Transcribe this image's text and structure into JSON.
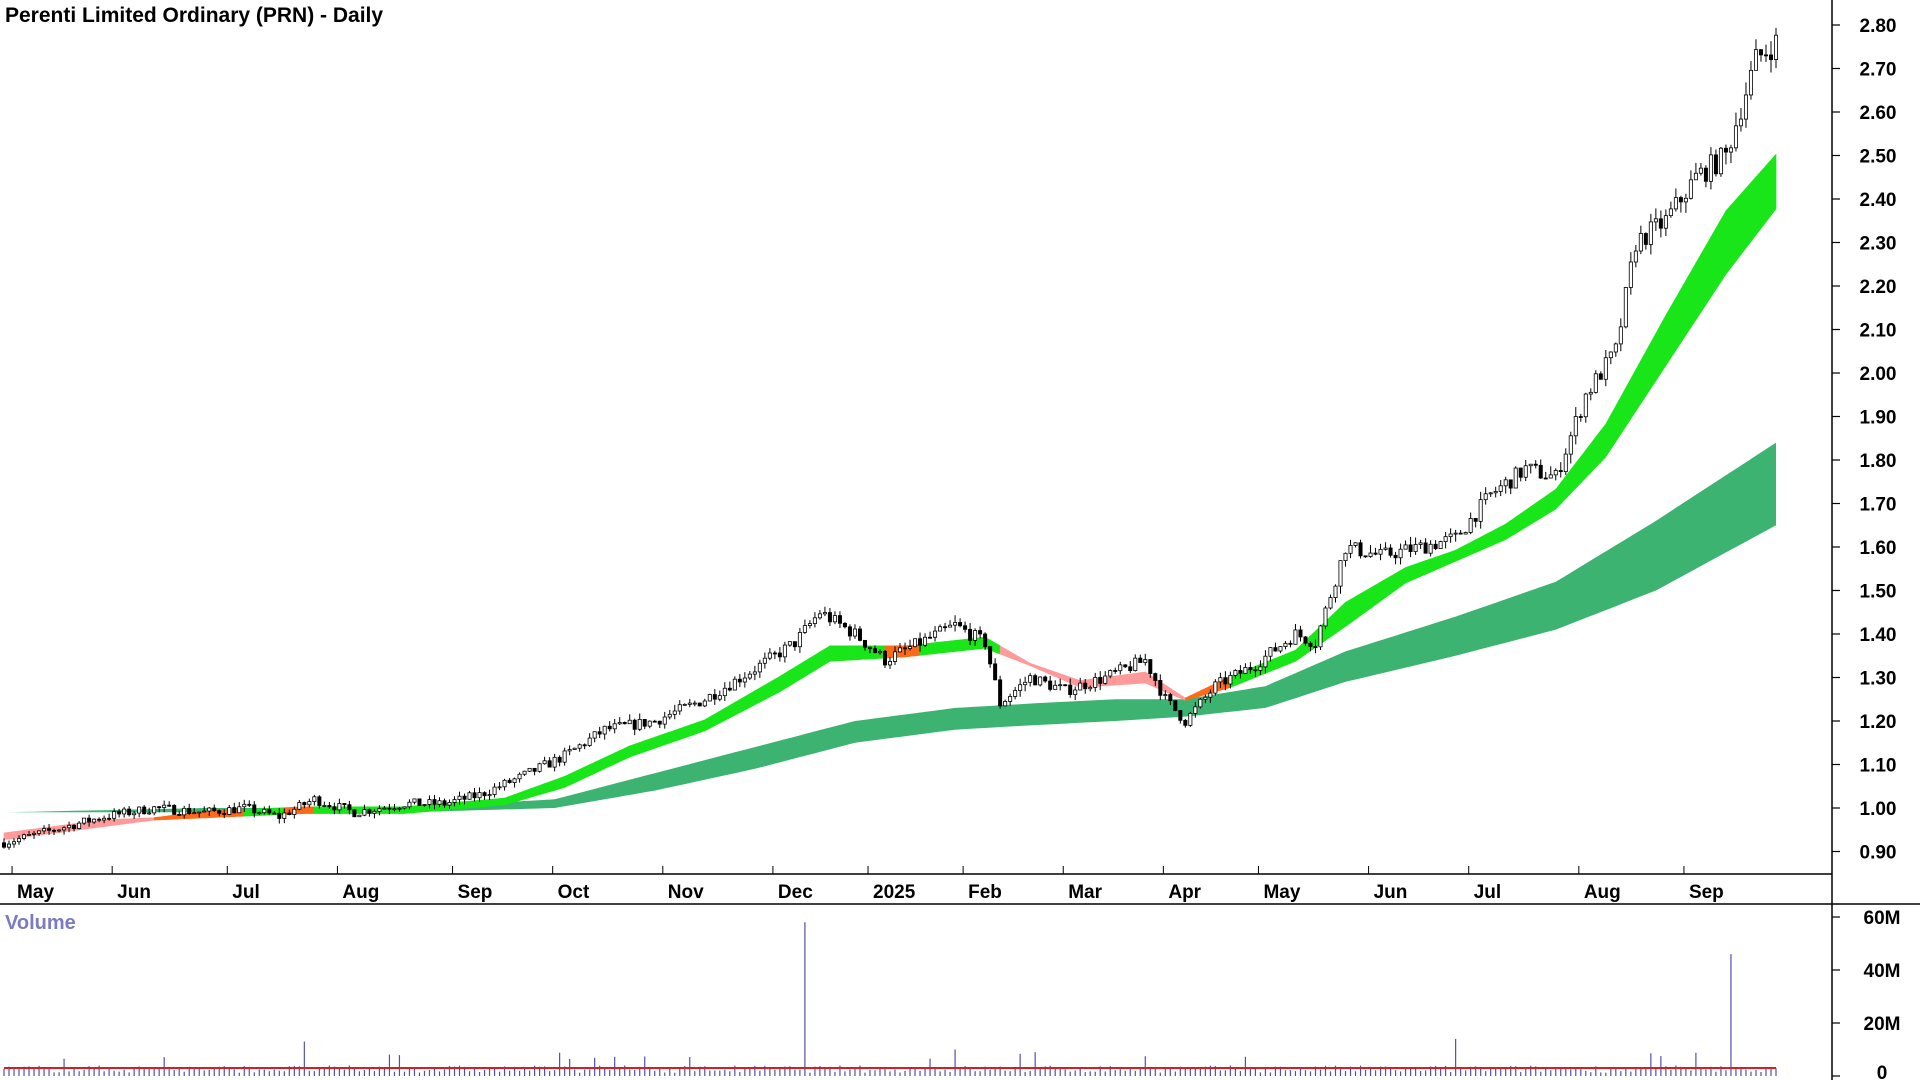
{
  "chart_data": {
    "type": "candlestick",
    "title": "Perenti Limited Ordinary (PRN) - Daily",
    "price_axis": {
      "ylim": [
        0.85,
        2.85
      ],
      "ticks": [
        "0.90",
        "1.00",
        "1.10",
        "1.20",
        "1.30",
        "1.40",
        "1.50",
        "1.60",
        "1.70",
        "1.80",
        "1.90",
        "2.00",
        "2.10",
        "2.20",
        "2.30",
        "2.40",
        "2.50",
        "2.60",
        "2.70",
        "2.80"
      ]
    },
    "x_axis": {
      "ticks": [
        "May",
        "Jun",
        "Jul",
        "Aug",
        "Sep",
        "Oct",
        "Nov",
        "Dec",
        "2025",
        "Feb",
        "Mar",
        "Apr",
        "May",
        "Jun",
        "Jul",
        "Aug",
        "Sep"
      ]
    },
    "price_path": [
      [
        0,
        0.92
      ],
      [
        10,
        0.95
      ],
      [
        20,
        0.98
      ],
      [
        30,
        1.0
      ],
      [
        40,
        0.99
      ],
      [
        48,
        1.0
      ],
      [
        55,
        0.98
      ],
      [
        62,
        1.02
      ],
      [
        70,
        0.99
      ],
      [
        80,
        1.01
      ],
      [
        88,
        1.01
      ],
      [
        95,
        1.03
      ],
      [
        103,
        1.07
      ],
      [
        112,
        1.12
      ],
      [
        120,
        1.18
      ],
      [
        130,
        1.2
      ],
      [
        140,
        1.25
      ],
      [
        150,
        1.32
      ],
      [
        158,
        1.38
      ],
      [
        163,
        1.45
      ],
      [
        170,
        1.4
      ],
      [
        176,
        1.34
      ],
      [
        183,
        1.38
      ],
      [
        190,
        1.42
      ],
      [
        196,
        1.38
      ],
      [
        199,
        1.24
      ],
      [
        205,
        1.3
      ],
      [
        212,
        1.27
      ],
      [
        220,
        1.3
      ],
      [
        228,
        1.34
      ],
      [
        232,
        1.25
      ],
      [
        236,
        1.2
      ],
      [
        242,
        1.28
      ],
      [
        250,
        1.33
      ],
      [
        258,
        1.4
      ],
      [
        262,
        1.38
      ],
      [
        268,
        1.6
      ],
      [
        275,
        1.58
      ],
      [
        283,
        1.6
      ],
      [
        290,
        1.62
      ],
      [
        297,
        1.72
      ],
      [
        304,
        1.78
      ],
      [
        310,
        1.76
      ],
      [
        316,
        1.95
      ],
      [
        322,
        2.05
      ],
      [
        326,
        2.3
      ],
      [
        332,
        2.35
      ],
      [
        338,
        2.45
      ],
      [
        344,
        2.5
      ],
      [
        350,
        2.72
      ],
      [
        354,
        2.76
      ]
    ],
    "ema_short_band": {
      "name_fast": "short-term EMA group (fast edge)",
      "fast": [
        [
          0,
          0.93
        ],
        [
          20,
          0.96
        ],
        [
          40,
          0.99
        ],
        [
          60,
          1.0
        ],
        [
          80,
          1.0
        ],
        [
          100,
          1.02
        ],
        [
          112,
          1.07
        ],
        [
          125,
          1.14
        ],
        [
          140,
          1.2
        ],
        [
          155,
          1.3
        ],
        [
          165,
          1.37
        ],
        [
          180,
          1.37
        ],
        [
          196,
          1.39
        ],
        [
          205,
          1.33
        ],
        [
          215,
          1.29
        ],
        [
          228,
          1.31
        ],
        [
          236,
          1.25
        ],
        [
          245,
          1.3
        ],
        [
          258,
          1.36
        ],
        [
          268,
          1.47
        ],
        [
          280,
          1.55
        ],
        [
          290,
          1.59
        ],
        [
          300,
          1.65
        ],
        [
          310,
          1.73
        ],
        [
          320,
          1.88
        ],
        [
          332,
          2.13
        ],
        [
          344,
          2.37
        ],
        [
          354,
          2.5
        ]
      ],
      "slow": [
        [
          0,
          0.94
        ],
        [
          20,
          0.97
        ],
        [
          40,
          0.98
        ],
        [
          60,
          0.99
        ],
        [
          80,
          0.99
        ],
        [
          100,
          1.01
        ],
        [
          112,
          1.05
        ],
        [
          125,
          1.12
        ],
        [
          140,
          1.18
        ],
        [
          155,
          1.27
        ],
        [
          165,
          1.34
        ],
        [
          180,
          1.35
        ],
        [
          196,
          1.37
        ],
        [
          205,
          1.33
        ],
        [
          215,
          1.28
        ],
        [
          228,
          1.29
        ],
        [
          236,
          1.25
        ],
        [
          245,
          1.28
        ],
        [
          258,
          1.34
        ],
        [
          268,
          1.42
        ],
        [
          280,
          1.52
        ],
        [
          290,
          1.57
        ],
        [
          300,
          1.62
        ],
        [
          310,
          1.69
        ],
        [
          320,
          1.81
        ],
        [
          332,
          2.02
        ],
        [
          344,
          2.23
        ],
        [
          354,
          2.38
        ]
      ]
    },
    "ema_long_band": {
      "name": "long-term EMA group",
      "upper": [
        [
          0,
          0.99
        ],
        [
          40,
          1.0
        ],
        [
          80,
          1.0
        ],
        [
          110,
          1.02
        ],
        [
          130,
          1.08
        ],
        [
          150,
          1.14
        ],
        [
          170,
          1.2
        ],
        [
          190,
          1.23
        ],
        [
          205,
          1.24
        ],
        [
          222,
          1.25
        ],
        [
          236,
          1.25
        ],
        [
          252,
          1.28
        ],
        [
          268,
          1.36
        ],
        [
          290,
          1.44
        ],
        [
          310,
          1.52
        ],
        [
          330,
          1.66
        ],
        [
          354,
          1.84
        ]
      ],
      "lower": [
        [
          0,
          0.99
        ],
        [
          40,
          0.99
        ],
        [
          80,
          0.99
        ],
        [
          110,
          1.0
        ],
        [
          130,
          1.04
        ],
        [
          150,
          1.09
        ],
        [
          170,
          1.15
        ],
        [
          190,
          1.18
        ],
        [
          205,
          1.19
        ],
        [
          222,
          1.2
        ],
        [
          236,
          1.21
        ],
        [
          252,
          1.23
        ],
        [
          268,
          1.29
        ],
        [
          290,
          1.35
        ],
        [
          310,
          1.41
        ],
        [
          330,
          1.5
        ],
        [
          354,
          1.65
        ]
      ]
    },
    "volume_panel": {
      "label": "Volume",
      "ylim": [
        0,
        62
      ],
      "unit": "M",
      "ticks": [
        "0",
        "20M",
        "40M",
        "60M"
      ],
      "spikes": [
        [
          60,
          13
        ],
        [
          160,
          58
        ],
        [
          190,
          10
        ],
        [
          206,
          9
        ],
        [
          290,
          14
        ],
        [
          345,
          46
        ]
      ],
      "baseline_mean": 2.5,
      "average_line": 3.0
    },
    "colors": {
      "bullish_short": "#19e619",
      "bearish_short": "#ff6a1a",
      "weak_short": "#ff9a9a",
      "long_band": "#3cb371",
      "volume_bars": "#5050b4",
      "volume_avg": "#d42020"
    }
  }
}
